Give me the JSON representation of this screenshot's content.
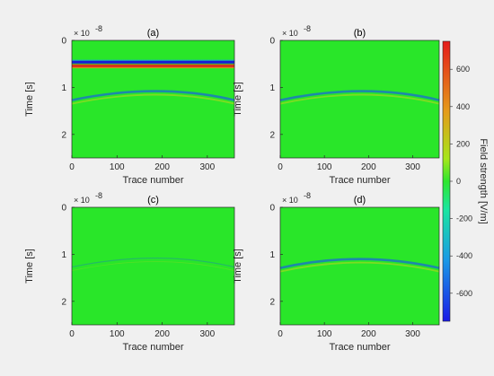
{
  "chart_data": {
    "type": "heatmap",
    "colormap": "blue-green-red",
    "colorbar": {
      "label": "Field strength [V/m]",
      "range": [
        -750,
        750
      ],
      "ticks": [
        "600",
        "400",
        "200",
        "0",
        "-200",
        "-400",
        "-600"
      ]
    },
    "shared_axes": {
      "xlabel": "Trace number",
      "ylabel": "Time [s]",
      "x_ticks": [
        "0",
        "100",
        "200",
        "300"
      ],
      "y_ticks": [
        "0",
        "1",
        "2"
      ],
      "y_exponent": "× 10",
      "y_exponent_power": "-8",
      "xlim": [
        0,
        360
      ],
      "ylim": [
        0,
        2.5
      ]
    },
    "panels": [
      {
        "title": "(a)",
        "features": [
          {
            "kind": "direct-wave band",
            "time_start": 0.4,
            "time_end": 0.6
          },
          {
            "kind": "reflection hyperbola",
            "apex_trace": 190,
            "apex_time": 1.08
          }
        ]
      },
      {
        "title": "(b)",
        "features": [
          {
            "kind": "reflection hyperbola",
            "apex_trace": 190,
            "apex_time": 1.08
          }
        ]
      },
      {
        "title": "(c)",
        "features": [
          {
            "kind": "weak reflection",
            "apex_trace": 190,
            "apex_time": 1.08
          }
        ]
      },
      {
        "title": "(d)",
        "features": [
          {
            "kind": "reflection hyperbola",
            "apex_trace": 180,
            "apex_time": 1.1
          }
        ]
      }
    ]
  }
}
